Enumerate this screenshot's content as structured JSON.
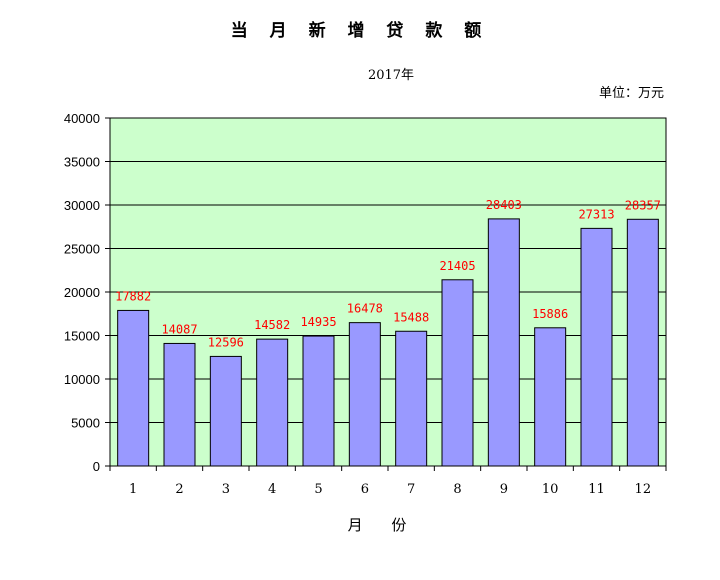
{
  "chart_data": {
    "type": "bar",
    "title": "当 月 新 增 贷 款 额",
    "subtitle": "2017年",
    "unit": "单位：万元",
    "xlabel": "月  份",
    "categories": [
      "1",
      "2",
      "3",
      "4",
      "5",
      "6",
      "7",
      "8",
      "9",
      "10",
      "11",
      "12"
    ],
    "values": [
      17882,
      14087,
      12596,
      14582,
      14935,
      16478,
      15488,
      21405,
      28403,
      15886,
      27313,
      28357
    ],
    "ylim": [
      0,
      40000
    ],
    "yticks": [
      "0",
      "5000",
      "10000",
      "15000",
      "20000",
      "25000",
      "30000",
      "35000",
      "40000"
    ],
    "grid": true,
    "colors": {
      "plot_background": "#ccffcc",
      "bar_fill": "#9999ff",
      "data_label": "#ff0000",
      "grid": "#000000"
    }
  }
}
